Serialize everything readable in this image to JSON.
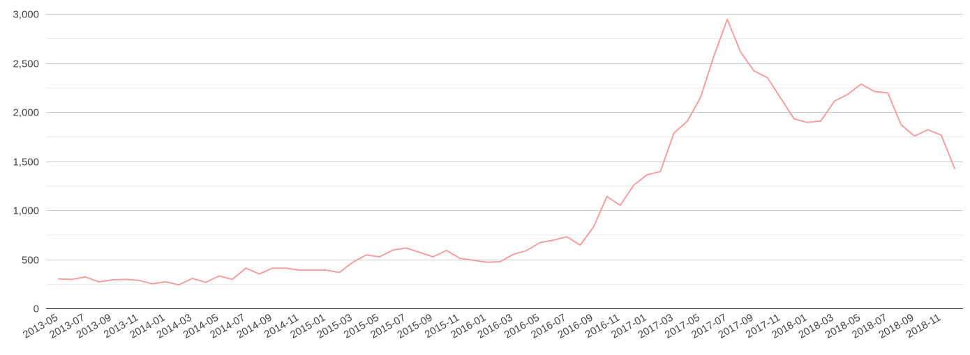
{
  "chart_data": {
    "type": "line",
    "title": "",
    "xlabel": "",
    "ylabel": "",
    "ylim": [
      0,
      3000
    ],
    "y_ticks": [
      0,
      500,
      1000,
      1500,
      2000,
      2500,
      3000
    ],
    "y_tick_labels": [
      "0",
      "500",
      "1,000",
      "1,500",
      "2,000",
      "2,500",
      "3,000"
    ],
    "grid": true,
    "legend": "none",
    "line_color": "#f4a0a0",
    "x": [
      "2013-05",
      "2013-06",
      "2013-07",
      "2013-08",
      "2013-09",
      "2013-10",
      "2013-11",
      "2013-12",
      "2014-01",
      "2014-02",
      "2014-03",
      "2014-04",
      "2014-05",
      "2014-06",
      "2014-07",
      "2014-08",
      "2014-09",
      "2014-10",
      "2014-11",
      "2014-12",
      "2015-01",
      "2015-02",
      "2015-03",
      "2015-04",
      "2015-05",
      "2015-06",
      "2015-07",
      "2015-08",
      "2015-09",
      "2015-10",
      "2015-11",
      "2015-12",
      "2016-01",
      "2016-02",
      "2016-03",
      "2016-04",
      "2016-05",
      "2016-06",
      "2016-07",
      "2016-08",
      "2016-09",
      "2016-10",
      "2016-11",
      "2016-12",
      "2017-01",
      "2017-02",
      "2017-03",
      "2017-04",
      "2017-05",
      "2017-06",
      "2017-07",
      "2017-08",
      "2017-09",
      "2017-10",
      "2017-11",
      "2017-12",
      "2018-01",
      "2018-02",
      "2018-03",
      "2018-04",
      "2018-05",
      "2018-06",
      "2018-07",
      "2018-08",
      "2018-09",
      "2018-10",
      "2018-11",
      "2018-12"
    ],
    "x_tick_labels": [
      "2013-05",
      "2013-07",
      "2013-09",
      "2013-11",
      "2014-01",
      "2014-03",
      "2014-05",
      "2014-07",
      "2014-09",
      "2014-11",
      "2015-01",
      "2015-03",
      "2015-05",
      "2015-07",
      "2015-09",
      "2015-11",
      "2016-01",
      "2016-03",
      "2016-05",
      "2016-07",
      "2016-09",
      "2016-11",
      "2017-01",
      "2017-03",
      "2017-05",
      "2017-07",
      "2017-09",
      "2017-11",
      "2018-01",
      "2018-03",
      "2018-05",
      "2018-07",
      "2018-09",
      "2018-11"
    ],
    "series": [
      {
        "values": [
          300,
          295,
          320,
          270,
          290,
          295,
          285,
          250,
          270,
          240,
          305,
          265,
          330,
          295,
          410,
          350,
          410,
          410,
          390,
          390,
          390,
          365,
          470,
          545,
          525,
          595,
          615,
          570,
          525,
          590,
          510,
          490,
          470,
          475,
          550,
          590,
          670,
          695,
          730,
          645,
          830,
          1140,
          1050,
          1255,
          1360,
          1395,
          1785,
          1905,
          2150,
          2570,
          2945,
          2610,
          2420,
          2350,
          2140,
          1930,
          1895,
          1910,
          2110,
          2180,
          2285,
          2210,
          2195,
          1870,
          1755,
          1820,
          1765,
          1425
        ]
      }
    ]
  }
}
